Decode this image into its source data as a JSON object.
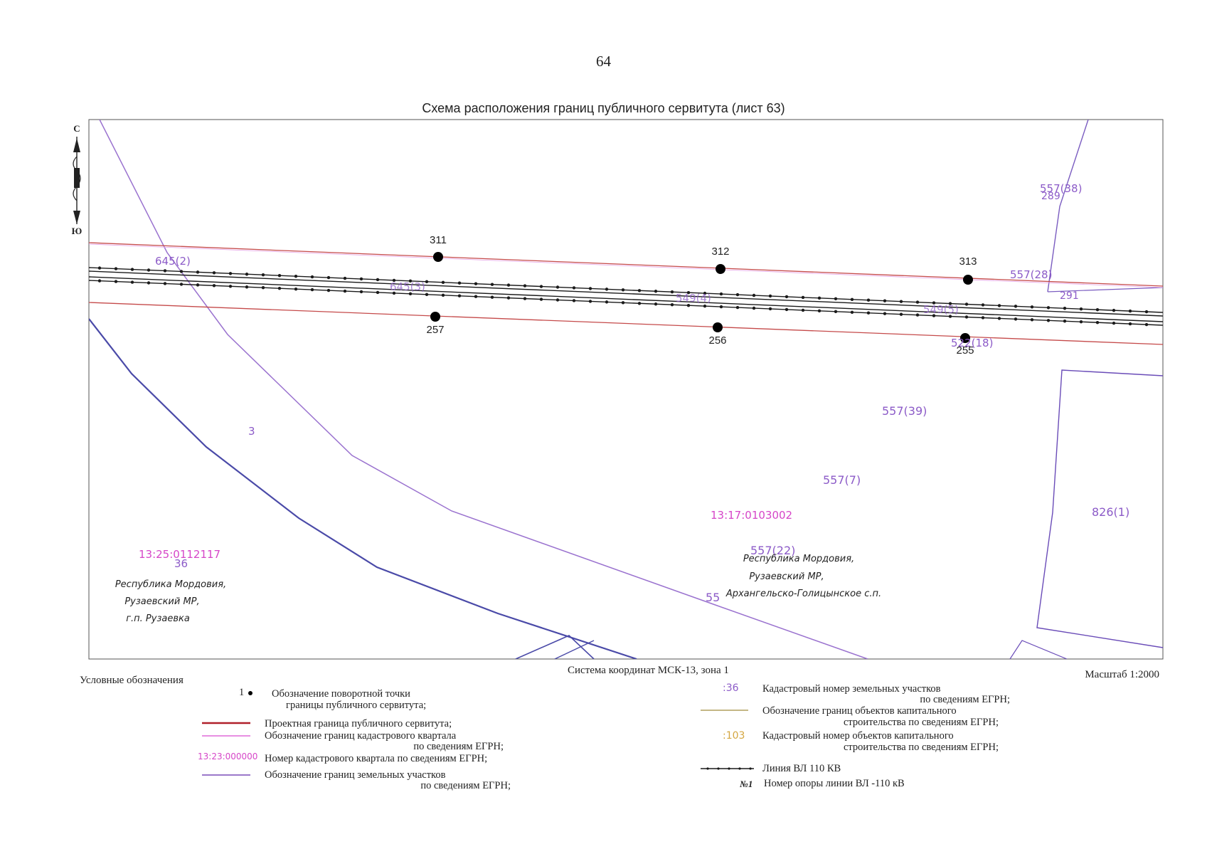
{
  "page_number": "64",
  "title": "Схема расположения границ публичного сервитута (лист 63)",
  "north_arrow": {
    "north": "С",
    "south": "Ю"
  },
  "colors": {
    "servitude_boundary": "#c0392b",
    "servitude_boundary_light": "#d98a8a",
    "quarter_boundary": "#d56bd5",
    "quarter_number": "#d646c8",
    "parcel_boundary": "#8c5bc8",
    "parcel_label": "#8c5bc8",
    "parcel_dark": "#3a3a9a",
    "capital_boundary": "#a08c3c",
    "capital_number": "#d4a640",
    "power_line": "#1a1a1a"
  },
  "servitude_points": [
    {
      "label": "311"
    },
    {
      "label": "312"
    },
    {
      "label": "313"
    },
    {
      "label": "257"
    },
    {
      "label": "256"
    },
    {
      "label": "255"
    }
  ],
  "map_labels": {
    "p_645_2": "645(2)",
    "p_645_3": "645(3)",
    "p_549_4": "549(4)",
    "p_549_5": "549(5)",
    "p_557_38": "557(38)",
    "p_289": "289",
    "p_557_28": "557(28)",
    "p_291": "291",
    "p_522_18": "522(18)",
    "p_557_39": "557(39)",
    "p_3": "3",
    "p_557_7": "557(7)",
    "q_1317": "13:17:0103002",
    "p_826_1": "826(1)",
    "q_1325": "13:25:0112117",
    "p_36": "36",
    "p_557_22": "557(22)",
    "p_55": "55"
  },
  "admin_left": [
    "Республика Мордовия,",
    "Рузаевский МР,",
    "г.п. Рузаевка"
  ],
  "admin_right": [
    "Республика Мордовия,",
    "Рузаевский МР,",
    "Архангельско-Голицынское с.п."
  ],
  "coord_system": "Система координат МСК-13, зона 1",
  "scale": "Масштаб 1:2000",
  "legend": {
    "heading": "Условные обозначения",
    "point_symbol_label": "1",
    "turning_point": [
      "Обозначение поворотной точки",
      "границы публичного сервитута;"
    ],
    "servitude_boundary": "Проектная граница публичного сервитута;",
    "quarter_boundary": [
      "Обозначение границ кадастрового квартала",
      "по сведениям ЕГРН;"
    ],
    "quarter_number_sample": "13:23:000000",
    "quarter_number": "Номер кадастрового квартала по сведениям ЕГРН;",
    "parcel_boundary": [
      "Обозначение границ земельных участков",
      "по сведениям ЕГРН;"
    ],
    "parcel_number_sample": ":36",
    "parcel_number": [
      "Кадастровый номер земельных участков",
      "по сведениям ЕГРН;"
    ],
    "capital_boundary": [
      "Обозначение границ объектов капитального",
      "строительства по сведениям ЕГРН;"
    ],
    "capital_number_sample": ":103",
    "capital_number": [
      "Кадастровый номер объектов капитального",
      "строительства по сведениям ЕГРН;"
    ],
    "power_line": "Линия ВЛ 110 КВ",
    "pole_sample": "№1",
    "pole_number": "Номер опоры линии ВЛ -110 кВ"
  }
}
